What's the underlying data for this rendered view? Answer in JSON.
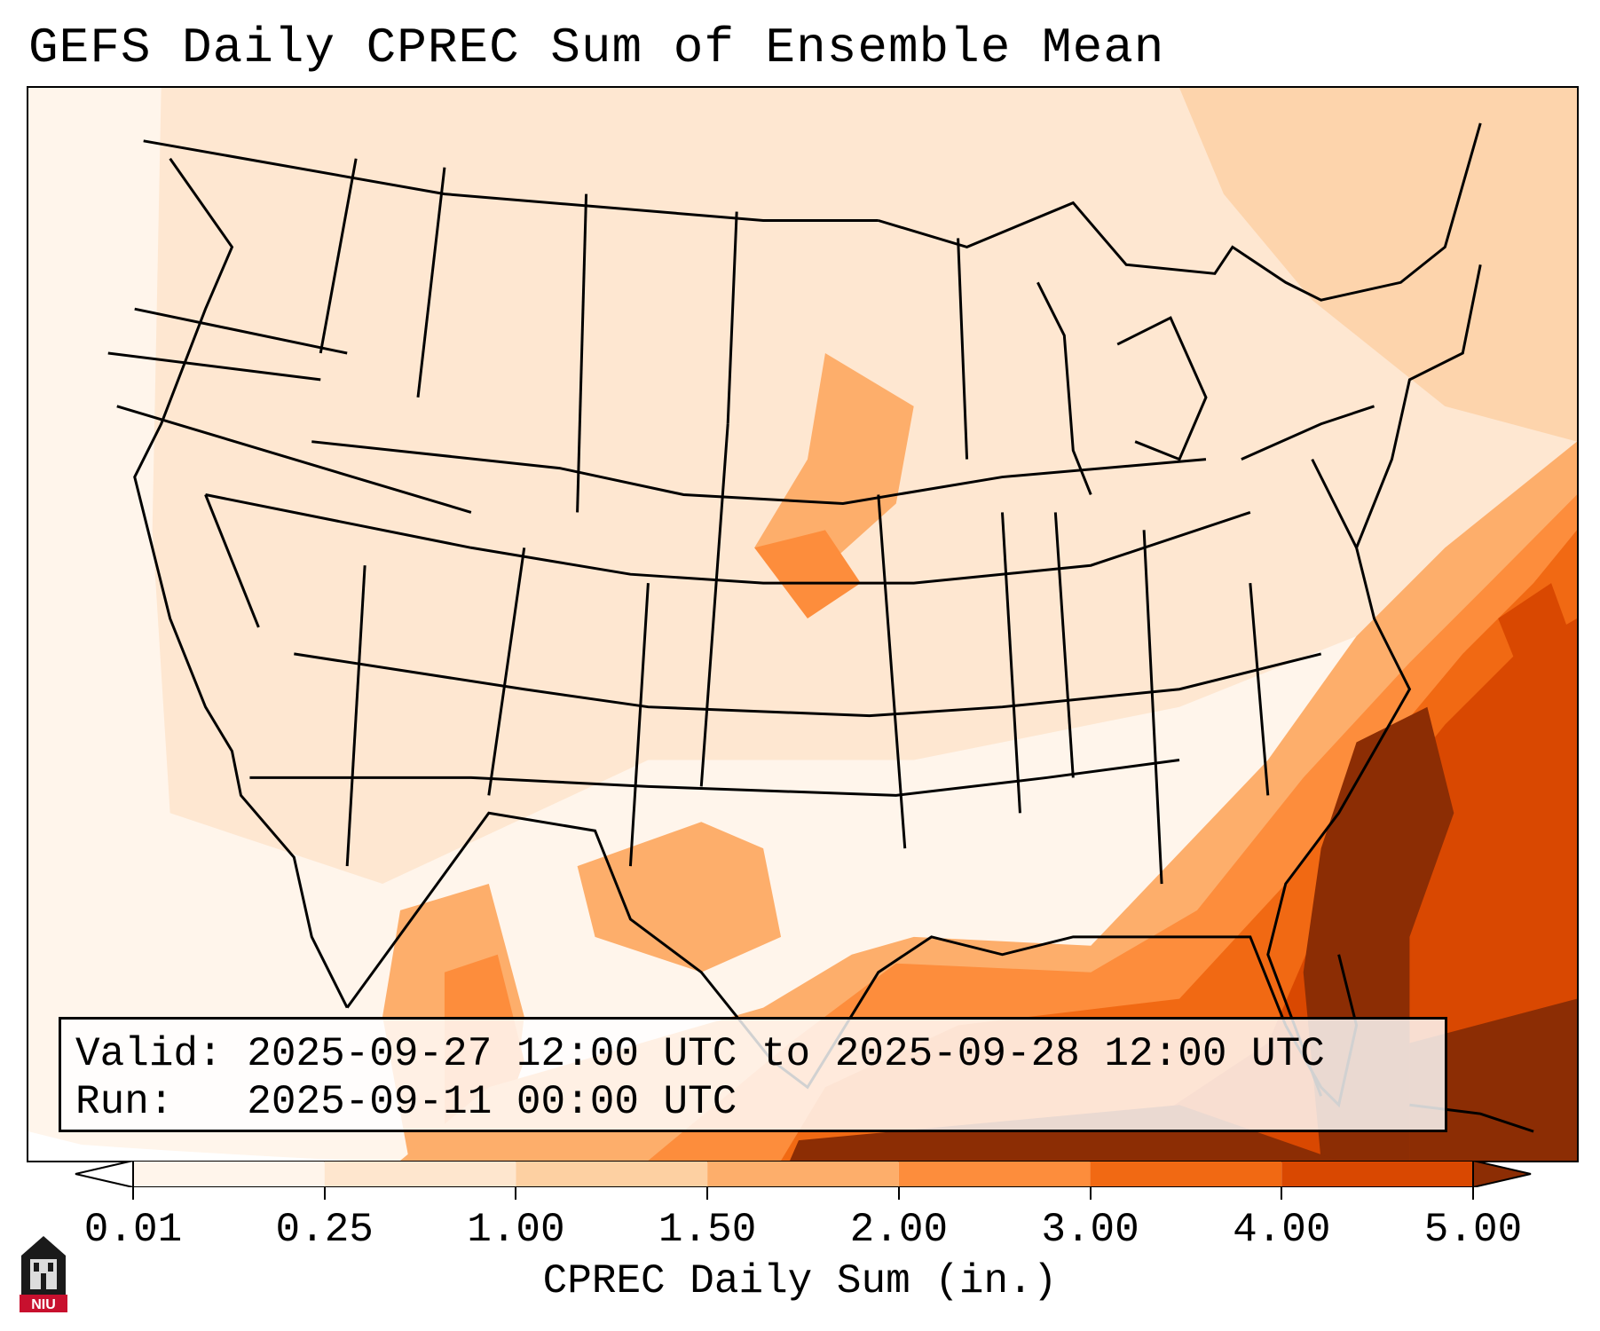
{
  "title": "GEFS Daily CPREC Sum of Ensemble Mean",
  "info": {
    "valid_label": "Valid:",
    "valid_value": "2025-09-27 12:00 UTC to 2025-09-28 12:00 UTC",
    "run_label": "Run:",
    "run_value": "2025-09-11 00:00 UTC"
  },
  "colorbar": {
    "ticks": [
      "0.01",
      "0.25",
      "1.00",
      "1.50",
      "2.00",
      "3.00",
      "4.00",
      "5.00"
    ],
    "colors": [
      "#fff5eb",
      "#fee6ce",
      "#fdd0a2",
      "#fdae6b",
      "#fd8d3c",
      "#f16913",
      "#d94801",
      "#8c2d04"
    ],
    "label": "CPREC Daily Sum (in.)"
  },
  "map": {
    "region": "Contiguous United States",
    "field": "GEFS ensemble mean daily convective precipitation",
    "heavy_areas": [
      "Southeast US coast",
      "Florida",
      "Gulf of Mexico",
      "Western Atlantic"
    ]
  },
  "logo": {
    "name": "niu-logo",
    "text": "NIU"
  }
}
